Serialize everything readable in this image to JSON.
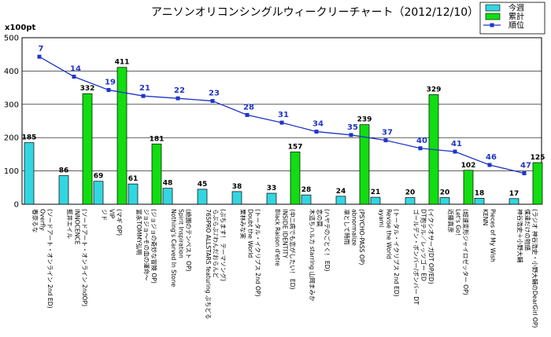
{
  "chart_data": {
    "type": "bar",
    "title": "アニソンオリコンシングルウィークリーチャート（2012/12/10）",
    "ylabel": "x100pt",
    "ylim": [
      0,
      500
    ],
    "yticks": [
      "0",
      "100",
      "200",
      "300",
      "400",
      "500"
    ],
    "grid": true,
    "legend_position": "top-right",
    "categories": [
      [
        "春奈るな",
        "Overfly",
        "(ソードアート・オンライン 2nd ED)"
      ],
      [
        "藍井エイル",
        "INNOCENCE",
        "(ソードアート・オンライン 2ndOP)"
      ],
      [
        "ジド",
        "VIP",
        "(マギ OP)"
      ],
      [
        "富永TOMMY弘明",
        "ジョジョ～その血の運命～",
        "(ジョジョの奇妙な冒険 OP)"
      ],
      [
        "Nothing's Carved In Stone",
        "Spirit Inspiration",
        "(絶園のテンペスト OP)"
      ],
      [
        "765PRO ALLSTARS featuring ぷちどる",
        "らぶらぶ♪わんだおらんど",
        "(ぷちます！ テーマソング)"
      ],
      [
        "栗林みな実",
        "Doubt the World",
        "(トータル・イクリプス 2nd OP)"
      ],
      [
        "Black Raison d'etre",
        "INSIDE IDENTITY",
        "(中二病でも恋がしたい！ ED)"
      ],
      [
        "木這ちハルカ starring 山岡まみか",
        "恋の罠",
        "(ハヤテのごとく！ ED)"
      ],
      [
        "凛として時雨",
        "abnormalize",
        "(PSYCHO-PASS OP)"
      ],
      [
        "ayami",
        "Revise the World",
        "(トータル・イクリプス 2nd ED)"
      ],
      [
        "ゴールデン・ボンバー/ボンバー DT",
        "DT抱テル／レッツゴー ED",
        "(イクシオサーガDT OP/ED)"
      ],
      [
        "近藤真彦",
        "Let's Go！",
        "(超速変形ジャイロゼッター OP)"
      ],
      [
        "KENN",
        "Pieces of My Wish",
        ""
      ],
      [
        "神谷浩史＋小野大輔",
        "僕達だけの物語",
        "(ラジオ 神谷浩史・小野大輔のDearGirl OP)"
      ]
    ],
    "series": [
      {
        "name": "今週",
        "values": [
          185,
          86,
          69,
          61,
          48,
          45,
          38,
          33,
          28,
          24,
          21,
          20,
          20,
          18,
          17
        ],
        "color": "#33d6e0"
      },
      {
        "name": "累計",
        "values": [
          null,
          332,
          411,
          181,
          null,
          null,
          null,
          157,
          null,
          239,
          null,
          329,
          102,
          null,
          125
        ],
        "color": "#11dd11"
      },
      {
        "name": "順位",
        "type": "line",
        "values": [
          443,
          383,
          343,
          325,
          318,
          310,
          268,
          245,
          218,
          208,
          192,
          168,
          158,
          118,
          93
        ],
        "rank_labels": [
          "7",
          "14",
          "19",
          "21",
          "22",
          "23",
          "28",
          "31",
          "34",
          "35",
          "37",
          "40",
          "41",
          "46",
          "47"
        ],
        "color": "#1f35c8"
      }
    ]
  }
}
